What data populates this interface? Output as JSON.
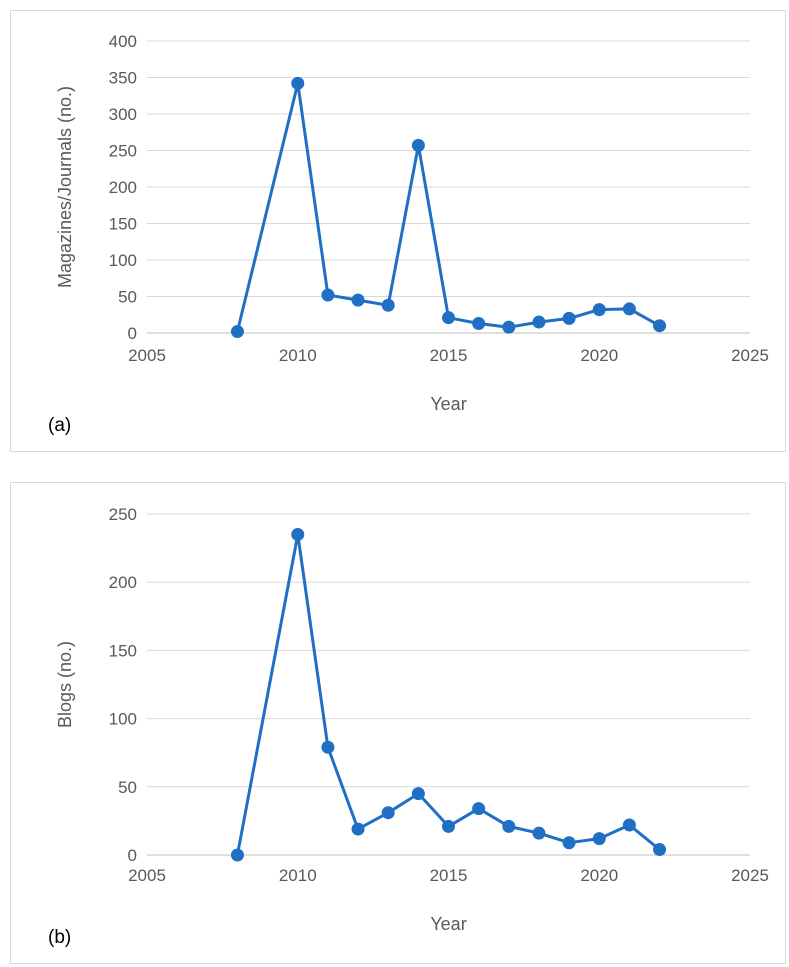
{
  "chart_data": [
    {
      "type": "scatter",
      "panel_label": "(a)",
      "xlabel": "Year",
      "ylabel": "Magazines/Journals (no.)",
      "xlim": [
        2005,
        2025
      ],
      "ylim": [
        0,
        400
      ],
      "x_ticks": [
        2005,
        2010,
        2015,
        2020,
        2025
      ],
      "y_ticks": [
        0,
        50,
        100,
        150,
        200,
        250,
        300,
        350,
        400
      ],
      "grid": "horizontal",
      "color": "#1f6fc5",
      "series": [
        {
          "x": [
            2008,
            2010,
            2011,
            2012,
            2013,
            2014,
            2015,
            2016,
            2017,
            2018,
            2019,
            2020,
            2021,
            2022
          ],
          "y": [
            2,
            342,
            52,
            45,
            38,
            257,
            21,
            13,
            8,
            15,
            20,
            32,
            33,
            10
          ]
        }
      ]
    },
    {
      "type": "scatter",
      "panel_label": "(b)",
      "xlabel": "Year",
      "ylabel": "Blogs (no.)",
      "xlim": [
        2005,
        2025
      ],
      "ylim": [
        0,
        250
      ],
      "x_ticks": [
        2005,
        2010,
        2015,
        2020,
        2025
      ],
      "y_ticks": [
        0,
        50,
        100,
        150,
        200,
        250
      ],
      "grid": "horizontal",
      "color": "#1f6fc5",
      "series": [
        {
          "x": [
            2008,
            2010,
            2011,
            2012,
            2013,
            2014,
            2015,
            2016,
            2017,
            2018,
            2019,
            2020,
            2021,
            2022
          ],
          "y": [
            0,
            235,
            79,
            19,
            31,
            45,
            21,
            34,
            21,
            16,
            9,
            12,
            22,
            4
          ]
        }
      ]
    }
  ]
}
